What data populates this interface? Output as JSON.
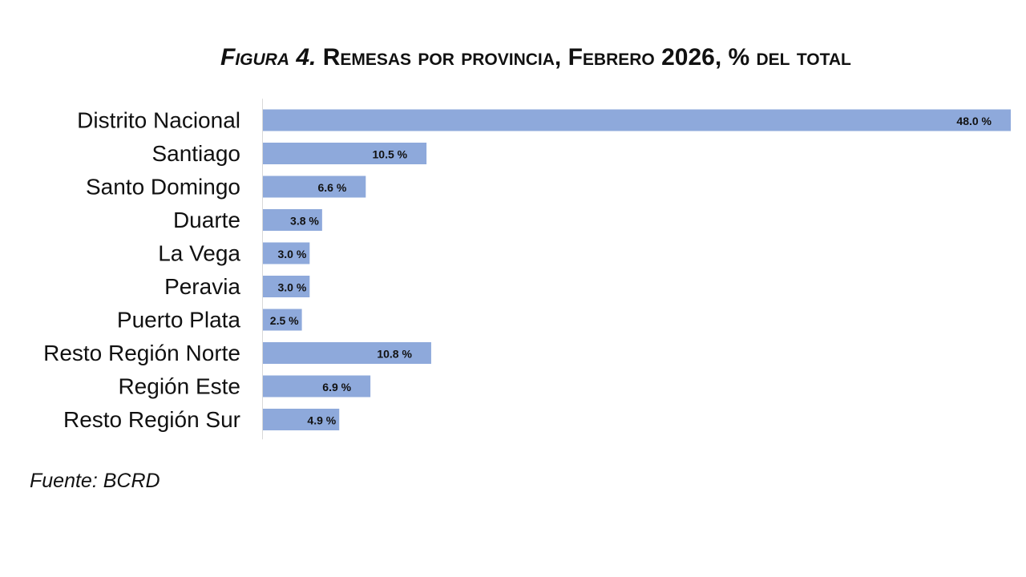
{
  "title": {
    "prefix": "Figura 4.",
    "text": "Remesas por provincia, Febrero 2026, % del total"
  },
  "source": "Fuente: BCRD",
  "colors": {
    "bar": "#8EA9DB",
    "axis": "#D9D9D9",
    "text": "#111111"
  },
  "chart_data": {
    "type": "bar",
    "orientation": "horizontal",
    "title": "Figura 4. Remesas por provincia, Febrero 2026, % del total",
    "categories": [
      "Distrito Nacional",
      "Santiago",
      "Santo Domingo",
      "Duarte",
      "La Vega",
      "Peravia",
      "Puerto Plata",
      "Resto Región Norte",
      "Región Este",
      "Resto Región Sur"
    ],
    "values": [
      48.0,
      10.5,
      6.6,
      3.8,
      3.0,
      3.0,
      2.5,
      10.8,
      6.9,
      4.9
    ],
    "data_labels": [
      "48.0 %",
      "10.5 %",
      "6.6 %",
      "3.8 %",
      "3.0 %",
      "3.0 %",
      "2.5 %",
      "10.8 %",
      "6.9 %",
      "4.9 %"
    ],
    "xlabel": "",
    "ylabel": "",
    "xlim": [
      0,
      48
    ],
    "grid": false,
    "legend": "none",
    "data_label_position": "inside-end"
  }
}
